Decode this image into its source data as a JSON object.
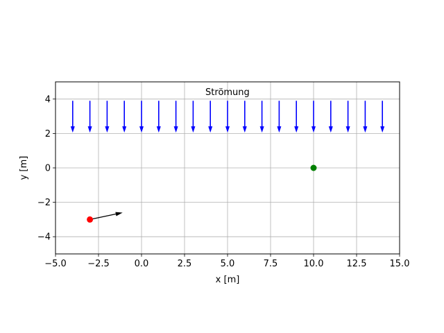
{
  "chart_data": {
    "type": "scatter",
    "xlabel": "x [m]",
    "ylabel": "y [m]",
    "xlim": [
      -5.0,
      15.0
    ],
    "ylim": [
      -5,
      5
    ],
    "grid": true,
    "xticks": [
      -5.0,
      -2.5,
      0.0,
      2.5,
      5.0,
      7.5,
      10.0,
      12.5,
      15.0
    ],
    "xtick_labels": [
      "−5.0",
      "−2.5",
      "0.0",
      "2.5",
      "5.0",
      "7.5",
      "10.0",
      "12.5",
      "15.0"
    ],
    "yticks": [
      -4,
      -2,
      0,
      2,
      4
    ],
    "ytick_labels": [
      "−4",
      "−2",
      "0",
      "2",
      "4"
    ],
    "annotation": {
      "text": "Strömung",
      "x": 5.4,
      "y": 4.6
    },
    "flow_arrows": {
      "color": "#0000ff",
      "x": [
        -4,
        -3,
        -2,
        -1,
        0,
        1,
        2,
        3,
        4,
        5,
        6,
        7,
        8,
        9,
        10,
        11,
        12,
        13,
        14
      ],
      "y_start": 3.9,
      "y_end": 2.05
    },
    "points": [
      {
        "x": -3,
        "y": -3,
        "color": "#ff0000"
      },
      {
        "x": 10,
        "y": 0,
        "color": "#008000"
      }
    ],
    "velocity_arrow": {
      "from": [
        -3,
        -3
      ],
      "to": [
        -1.1,
        -2.6
      ],
      "color": "#000000"
    }
  }
}
